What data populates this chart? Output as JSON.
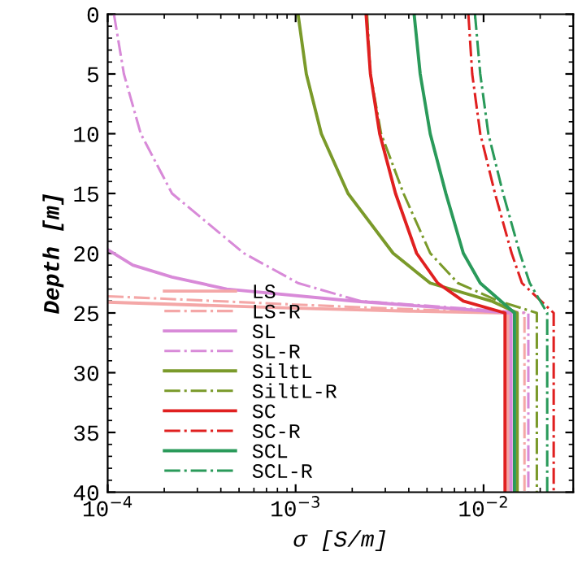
{
  "chart_data": {
    "type": "line",
    "xlabel": "σ [S/m]",
    "ylabel": "Depth [m]",
    "log": "x",
    "xlim": [
      0.0001,
      0.03
    ],
    "ylim": [
      40,
      0
    ],
    "xticks": [
      {
        "value": 0.0001,
        "label": "10$^{−4}$"
      },
      {
        "value": 0.001,
        "label": "10$^{−3}$"
      },
      {
        "value": 0.01,
        "label": "10$^{−2}$"
      }
    ],
    "yticks": [
      0,
      5,
      10,
      15,
      20,
      25,
      30,
      35,
      40
    ],
    "grid": false,
    "legend": "bottom left",
    "marker": "none",
    "series": [
      {
        "name": "LS",
        "color": "#f4a7a7",
        "line_style": "solid",
        "x": [
          0.0001,
          0.001,
          0.004,
          0.0135,
          0.0135
        ],
        "values": [
          24.1,
          24.6,
          24.85,
          25,
          40
        ]
      },
      {
        "name": "LS-R",
        "color": "#f4a7a7",
        "line_style": "dashdot",
        "x": [
          0.0001,
          0.001,
          0.005,
          0.0165,
          0.0165
        ],
        "values": [
          23.6,
          24.3,
          24.75,
          25,
          40
        ]
      },
      {
        "name": "SL",
        "color": "#d88ad8",
        "line_style": "solid",
        "x": [
          0.0001,
          0.000136,
          0.00022,
          0.00043,
          0.002,
          0.014,
          0.014
        ],
        "values": [
          19.7,
          21,
          22,
          23,
          24,
          25,
          40
        ]
      },
      {
        "name": "SL-R",
        "color": "#d88ad8",
        "line_style": "dashdot",
        "x": [
          0.000108,
          0.000122,
          0.00015,
          0.00022,
          0.00053,
          0.00103,
          0.0022,
          0.0173,
          0.0173
        ],
        "values": [
          0,
          5,
          10,
          15,
          20,
          22.5,
          24,
          25,
          40
        ]
      },
      {
        "name": "SiltL",
        "color": "#7a9a2a",
        "line_style": "solid",
        "x": [
          0.00103,
          0.00114,
          0.00137,
          0.0019,
          0.0033,
          0.0052,
          0.011,
          0.0151,
          0.0151
        ],
        "values": [
          0,
          5,
          10,
          15,
          20,
          22.5,
          24,
          25,
          40
        ]
      },
      {
        "name": "SiltL-R",
        "color": "#7a9a2a",
        "line_style": "dashdot",
        "x": [
          0.0024,
          0.0025,
          0.00285,
          0.00375,
          0.0052,
          0.0073,
          0.012,
          0.0192,
          0.0192
        ],
        "values": [
          0,
          5,
          10,
          15,
          20,
          22.5,
          24,
          25,
          40
        ]
      },
      {
        "name": "SC",
        "color": "#e02020",
        "line_style": "solid",
        "x": [
          0.00237,
          0.0025,
          0.0028,
          0.0034,
          0.0044,
          0.0057,
          0.0078,
          0.013,
          0.013
        ],
        "values": [
          0,
          5,
          10,
          15,
          20,
          22.5,
          24,
          25,
          40
        ]
      },
      {
        "name": "SC-R",
        "color": "#e02020",
        "line_style": "dashdot",
        "x": [
          0.0083,
          0.0087,
          0.0096,
          0.0115,
          0.0141,
          0.016,
          0.0236,
          0.0236
        ],
        "values": [
          0,
          5,
          10,
          15,
          20,
          22.5,
          25,
          40
        ]
      },
      {
        "name": "SCL",
        "color": "#2a9a5a",
        "line_style": "solid",
        "x": [
          0.00427,
          0.0046,
          0.0052,
          0.0063,
          0.0078,
          0.0096,
          0.0146,
          0.0146
        ],
        "values": [
          0,
          5,
          10,
          15,
          20,
          22.5,
          25,
          40
        ]
      },
      {
        "name": "SCL-R",
        "color": "#2a9a5a",
        "line_style": "dashdot",
        "x": [
          0.009,
          0.0096,
          0.0106,
          0.0127,
          0.0156,
          0.0176,
          0.0218,
          0.0218
        ],
        "values": [
          0,
          5,
          10,
          15,
          20,
          22.5,
          25,
          40
        ]
      }
    ]
  }
}
